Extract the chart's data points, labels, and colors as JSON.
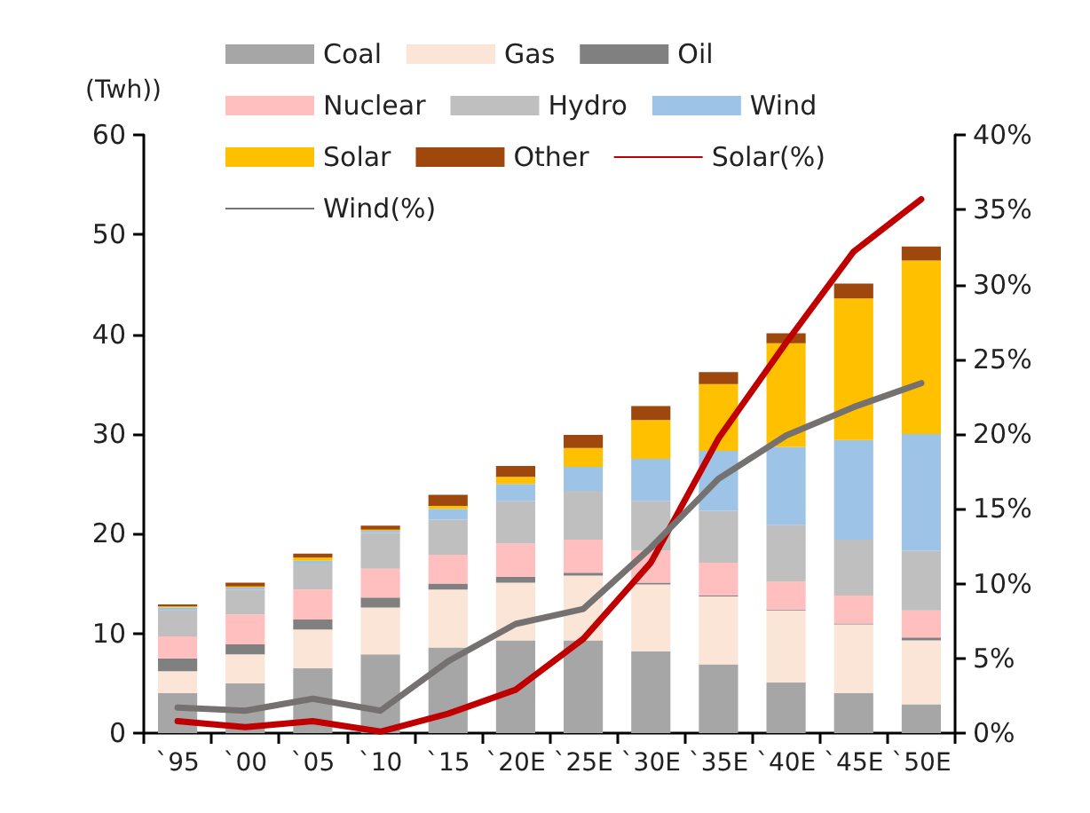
{
  "chart_data": {
    "type": "bar",
    "stacked": true,
    "ylabel": "(Twh))",
    "categories": [
      "`95",
      "`00",
      "`05",
      "`10",
      "`15",
      "`20E",
      "`25E",
      "`30E",
      "`35E",
      "`40E",
      "`45E",
      "`50E"
    ],
    "ylim": [
      0,
      60
    ],
    "yticks": [
      0,
      10,
      20,
      30,
      40,
      50,
      60
    ],
    "y2lim": [
      0,
      40
    ],
    "y2ticks": [
      {
        "value": 0,
        "label": "0%"
      },
      {
        "value": 5,
        "label": "5%"
      },
      {
        "value": 10,
        "label": "10%"
      },
      {
        "value": 15,
        "label": "15%"
      },
      {
        "value": 20,
        "label": "20%"
      },
      {
        "value": 25,
        "label": "25%"
      },
      {
        "value": 30,
        "label": "30%"
      },
      {
        "value": 35,
        "label": "35%"
      },
      {
        "value": 40,
        "label": "40%"
      }
    ],
    "grid": false,
    "legend": "top",
    "marker": "none",
    "line_style": "solid",
    "series": [
      {
        "name": "Coal",
        "color": "#a6a6a6",
        "values": [
          4.0,
          5.0,
          6.5,
          7.9,
          8.6,
          9.3,
          9.3,
          8.2,
          6.9,
          5.1,
          4.0,
          2.9
        ]
      },
      {
        "name": "Gas",
        "color": "#fbe5d6",
        "values": [
          2.2,
          2.9,
          3.9,
          4.7,
          5.8,
          5.8,
          6.5,
          6.7,
          6.8,
          7.2,
          6.9,
          6.4
        ]
      },
      {
        "name": "Oil",
        "color": "#808080",
        "values": [
          1.3,
          1.0,
          1.0,
          1.0,
          0.6,
          0.6,
          0.3,
          0.2,
          0.1,
          0.1,
          0.1,
          0.3
        ]
      },
      {
        "name": "Nuclear",
        "color": "#ffbfbf",
        "values": [
          2.2,
          3.0,
          3.0,
          2.9,
          2.9,
          3.3,
          3.3,
          3.2,
          3.3,
          2.8,
          2.8,
          2.7
        ]
      },
      {
        "name": "Hydro",
        "color": "#bfbfbf",
        "values": [
          2.6,
          2.5,
          2.6,
          3.6,
          3.5,
          4.3,
          4.9,
          5.0,
          5.2,
          5.7,
          5.6,
          6.0
        ]
      },
      {
        "name": "Wind",
        "color": "#9dc3e6",
        "values": [
          0.3,
          0.2,
          0.3,
          0.2,
          1.1,
          1.7,
          2.4,
          4.2,
          6.0,
          7.8,
          10.0,
          11.7
        ]
      },
      {
        "name": "Solar",
        "color": "#ffc000",
        "values": [
          0.1,
          0.1,
          0.3,
          0.1,
          0.3,
          0.7,
          1.9,
          3.9,
          6.7,
          10.4,
          14.2,
          17.4
        ]
      },
      {
        "name": "Other",
        "color": "#9e480e",
        "values": [
          0.2,
          0.4,
          0.4,
          0.4,
          1.1,
          1.1,
          1.3,
          1.4,
          1.2,
          1.0,
          1.5,
          1.4
        ]
      },
      {
        "name": "Solar(%)",
        "type": "line",
        "axis": "y2",
        "color": "#c00000",
        "values": [
          0.8,
          0.4,
          0.8,
          0.1,
          1.3,
          2.9,
          6.3,
          11.4,
          19.7,
          26.1,
          32.2,
          35.7
        ]
      },
      {
        "name": "Wind(%)",
        "type": "line",
        "axis": "y2",
        "color": "#767171",
        "values": [
          1.7,
          1.5,
          2.3,
          1.5,
          4.8,
          7.3,
          8.3,
          12.4,
          17.0,
          19.9,
          21.8,
          23.4
        ]
      }
    ]
  }
}
